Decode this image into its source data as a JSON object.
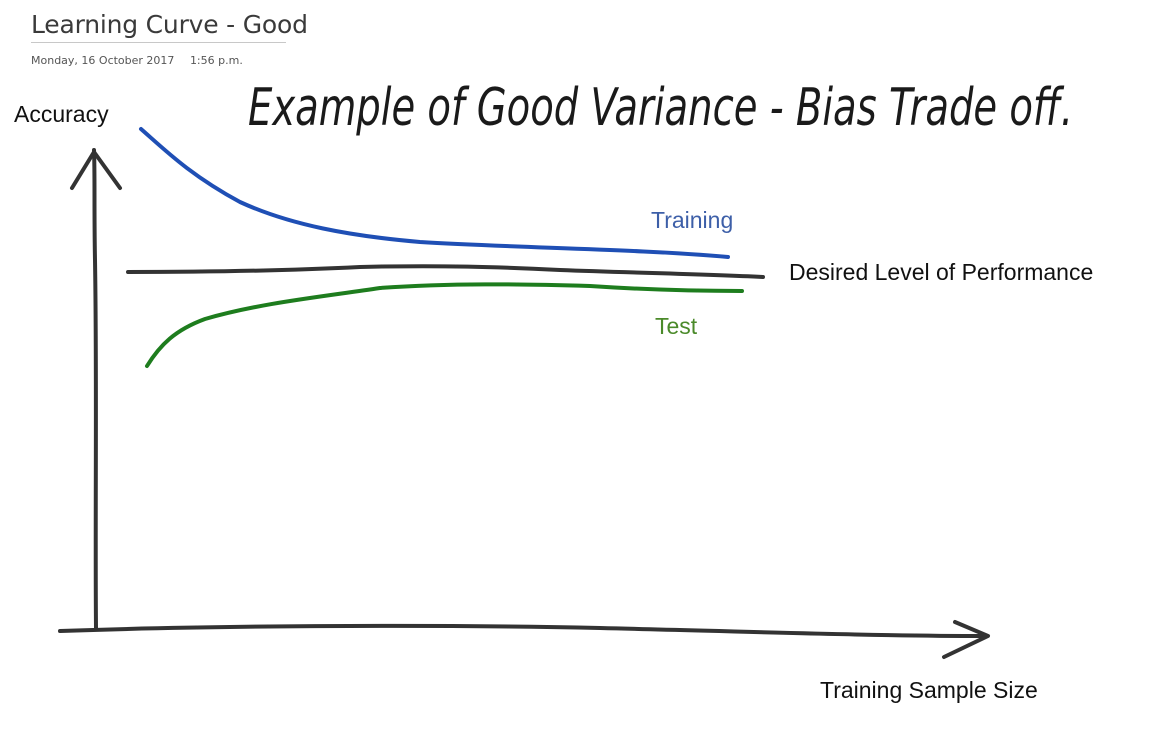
{
  "page": {
    "title": "Learning Curve - Good",
    "date": "Monday, 16 October 2017",
    "time": "1:56 p.m."
  },
  "diagram": {
    "heading": "Example of Good Variance - Bias Trade off.",
    "y_axis_label": "Accuracy",
    "x_axis_label": "Training Sample Size",
    "curves": {
      "training": {
        "label": "Training",
        "color": "#1f4fb5",
        "label_color": "#3d5fa8"
      },
      "desired": {
        "label": "Desired Level of Performance",
        "color": "#333333"
      },
      "test": {
        "label": "Test",
        "color": "#1e7d1e",
        "label_color": "#4b8a2a"
      }
    },
    "axis_color": "#333333"
  }
}
